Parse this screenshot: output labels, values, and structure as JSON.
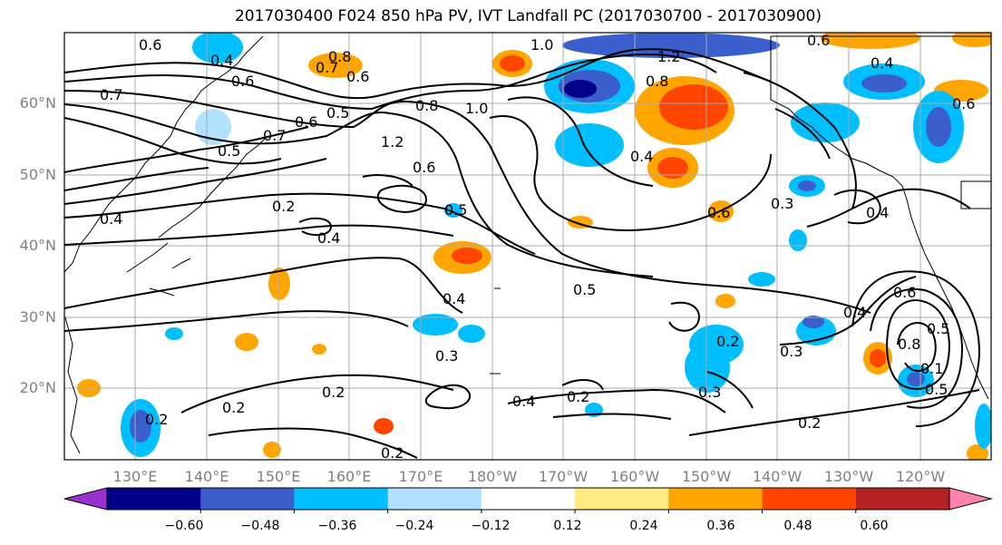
{
  "title": "2017030400 F024 850 hPa PV, IVT Landfall PC (2017030700 - 2017030900)",
  "lat_labels": [
    "60°N",
    "50°N",
    "40°N",
    "30°N",
    "20°N"
  ],
  "lon_labels": [
    "130°E",
    "140°E",
    "150°E",
    "160°E",
    "170°E",
    "180°W",
    "170°W",
    "160°W",
    "150°W",
    "140°W",
    "130°W",
    "120°W"
  ],
  "colorbar": {
    "tick_labels": [
      "−0.60",
      "−0.48",
      "−0.36",
      "−0.24",
      "−0.12",
      "0.12",
      "0.24",
      "0.36",
      "0.48",
      "0.60"
    ],
    "colors": [
      "#9932cc",
      "#00008b",
      "#3a5fcd",
      "#00bfff",
      "#b0e2ff",
      "#ffffff",
      "#ffe980",
      "#ffa500",
      "#ff4500",
      "#b22222",
      "#ff82ab"
    ]
  },
  "contour_labels": [
    "0.6",
    "0.4",
    "0.6",
    "0.8",
    "0.7",
    "0.6",
    "1.0",
    "1.2",
    "0.8",
    "0.4",
    "0.6",
    "0.7",
    "0.6",
    "0.5",
    "0.8",
    "1.0",
    "1.2",
    "0.6",
    "0.4",
    "0.6",
    "0.3",
    "0.4",
    "0.7",
    "0.4",
    "0.5",
    "0.2",
    "0.4",
    "0.5",
    "0.5",
    "0.4",
    "0.3",
    "0.2",
    "0.4",
    "0.2",
    "0.2",
    "0.3",
    "0.4",
    "0.6",
    "0.8",
    "0.5",
    "0.3",
    "0.2",
    "0.2",
    "0.2",
    "0.1",
    "0.5",
    "0.6",
    "0.2"
  ]
}
